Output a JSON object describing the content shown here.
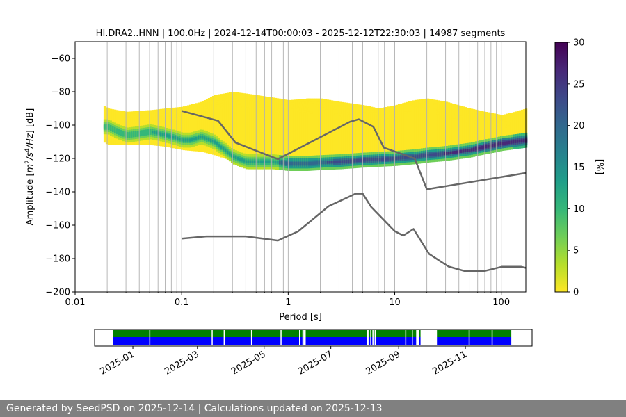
{
  "chart_data": [
    {
      "type": "heatmap",
      "title": "HI.DRA2..HNN | 100.0Hz | 2024-12-14T00:00:03 - 2025-12-12T22:30:03 | 14987 segments",
      "xlabel": "Period [s]",
      "ylabel_parts": [
        "Amplitude [",
        "m",
        "2",
        "/s",
        "4",
        "/Hz",
        "] [dB]"
      ],
      "x_scale": "log",
      "xlim": [
        0.01,
        170
      ],
      "ylim": [
        -200,
        -50
      ],
      "x_ticks": [
        "0.01",
        "0.1",
        "1",
        "10",
        "100"
      ],
      "y_ticks": [
        -60,
        -80,
        -100,
        -120,
        -140,
        -160,
        -180,
        -200
      ],
      "grid": true,
      "colorbar": {
        "label": "[%]",
        "ticks": [
          0,
          5,
          10,
          15,
          20,
          25,
          30
        ],
        "range": [
          0,
          30
        ],
        "colormap": "viridis_r"
      },
      "psd_mode": {
        "periods": [
          0.02,
          0.025,
          0.03,
          0.04,
          0.05,
          0.06,
          0.07,
          0.08,
          0.1,
          0.12,
          0.15,
          0.2,
          0.25,
          0.3,
          0.4,
          0.5,
          0.7,
          1,
          1.5,
          2,
          3,
          5,
          7,
          10,
          15,
          20,
          30,
          50,
          70,
          100,
          170
        ],
        "db": [
          -101,
          -104,
          -106,
          -105,
          -104,
          -105,
          -106,
          -107,
          -109,
          -109,
          -107,
          -110,
          -115,
          -119,
          -122,
          -122,
          -122,
          -123,
          -123,
          -122.5,
          -122,
          -121,
          -120.5,
          -120,
          -119,
          -118,
          -117,
          -115,
          -113,
          -111,
          -109
        ]
      },
      "psd_spread": {
        "periods": [
          0.018,
          0.02,
          0.03,
          0.05,
          0.07,
          0.1,
          0.15,
          0.2,
          0.3,
          0.5,
          0.8,
          1,
          1.5,
          2,
          3,
          5,
          7,
          10,
          15,
          20,
          30,
          50,
          70,
          100,
          170
        ],
        "upper_db": [
          -88,
          -90,
          -92,
          -91,
          -90,
          -89,
          -86,
          -82,
          -80,
          -82,
          -84,
          -85,
          -84,
          -84,
          -86,
          -88,
          -90,
          -88,
          -85,
          -84,
          -86,
          -90,
          -92,
          -94,
          -90
        ],
        "lower_db": [
          -110,
          -112,
          -112,
          -112,
          -113,
          -115,
          -116,
          -118,
          -122,
          -124,
          -124,
          -125,
          -125,
          -124,
          -124,
          -123,
          -123,
          -122,
          -120,
          -120,
          -119,
          -117,
          -115,
          -113,
          -111
        ]
      },
      "series": [
        {
          "name": "",
          "style": "gray line",
          "x": [
            0.1,
            0.22,
            0.32,
            0.8,
            3.8,
            4.6,
            6.3,
            7.9,
            15.4,
            20,
            170
          ],
          "y": [
            -91.5,
            -97.4,
            -110.5,
            -120.4,
            -98,
            -96.5,
            -101,
            -113.5,
            -120,
            -138.5,
            -128.7
          ]
        },
        {
          "name": "",
          "style": "gray line",
          "x": [
            0.1,
            0.17,
            0.4,
            0.8,
            1.24,
            2.4,
            4.3,
            5.0,
            6.0,
            10,
            12,
            15,
            21,
            32,
            45,
            70,
            101,
            154,
            170
          ],
          "y": [
            -168,
            -166.7,
            -166.7,
            -169.2,
            -163.7,
            -148.6,
            -141.1,
            -141.1,
            -149,
            -163.6,
            -166.2,
            -162.3,
            -177.2,
            -184.8,
            -187.4,
            -187.4,
            -184.9,
            -184.9,
            -185.6
          ]
        }
      ],
      "period_gridlines": [
        0.02,
        0.03,
        0.04,
        0.05,
        0.06,
        0.07,
        0.08,
        0.09,
        0.1,
        0.2,
        0.3,
        0.4,
        0.5,
        0.6,
        0.7,
        0.8,
        0.9,
        1,
        2,
        3,
        4,
        5,
        6,
        7,
        8,
        9,
        10,
        20,
        30,
        40,
        50,
        60,
        70,
        80,
        90,
        100
      ]
    },
    {
      "type": "timeline",
      "date_ticks": [
        "2025-01",
        "2025-03",
        "2025-05",
        "2025-07",
        "2025-09",
        "2025-11"
      ],
      "date_range": [
        "2024-11-27",
        "2026-01-01"
      ],
      "tick_dates": [
        "2025-01-01",
        "2025-03-01",
        "2025-05-01",
        "2025-07-01",
        "2025-09-01",
        "2025-11-01"
      ],
      "data_coverage": [
        [
          "2024-12-14",
          "2025-06-02"
        ],
        [
          "2025-06-03",
          "2025-06-06"
        ],
        [
          "2025-06-08",
          "2025-09-17"
        ],
        [
          "2025-09-20",
          "2025-09-21"
        ],
        [
          "2025-10-06",
          "2025-12-13"
        ]
      ],
      "gaps": [
        "2025-01-16",
        "2025-03-14",
        "2025-03-25",
        "2025-04-19",
        "2025-05-16",
        "2025-06-05",
        "2025-08-03",
        "2025-08-04",
        "2025-08-06",
        "2025-08-08",
        "2025-08-10",
        "2025-09-07",
        "2025-09-13",
        "2025-11-04",
        "2025-11-25"
      ],
      "colors": {
        "data": "#0000ff",
        "used": "#008000"
      }
    }
  ],
  "colors": {
    "model_lines": "#666666",
    "grid": "#b0b0b0",
    "footer_bg": "#808080"
  },
  "footer": {
    "text": "Generated by SeedPSD on 2025-12-14 | Calculations updated on 2025-12-13"
  }
}
